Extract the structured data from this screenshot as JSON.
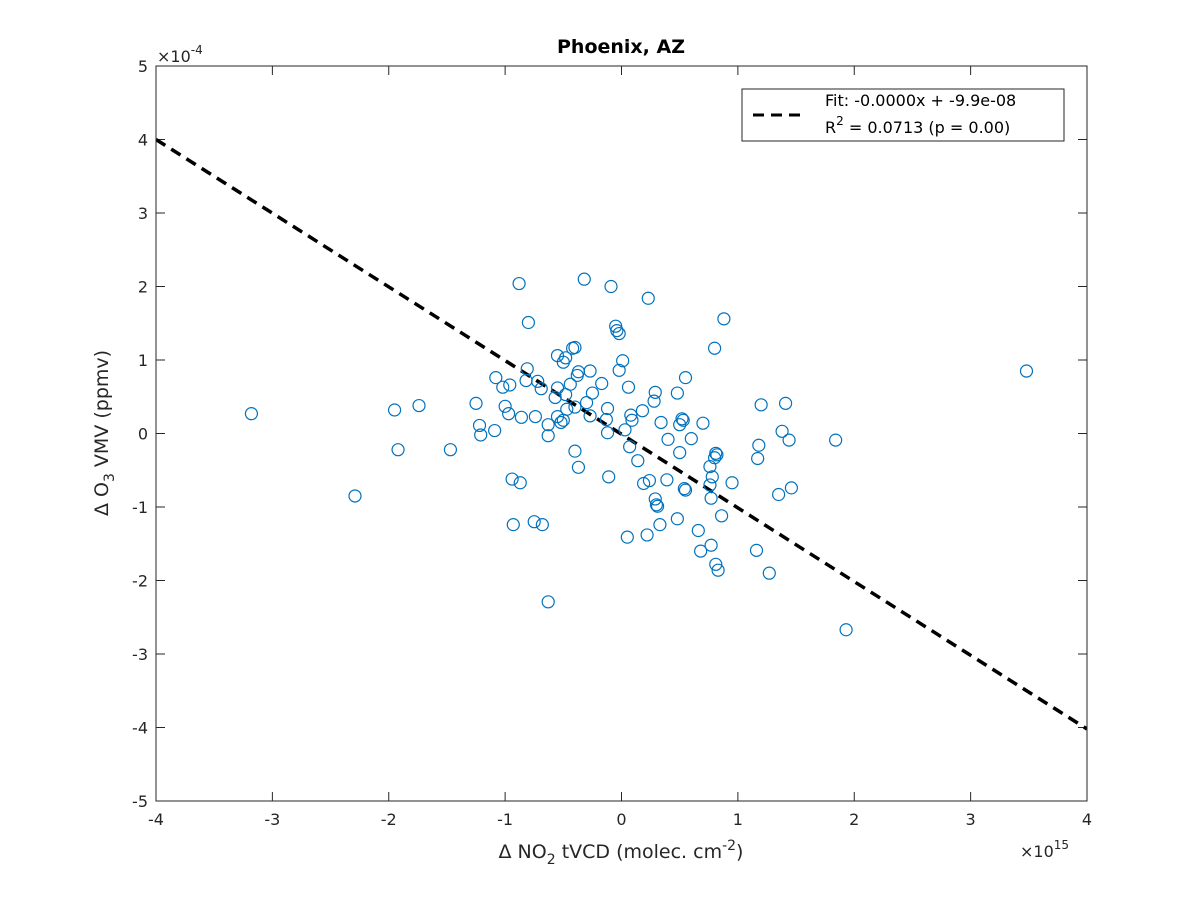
{
  "chart_data": {
    "type": "scatter",
    "title": "Phoenix, AZ",
    "xlabel": {
      "prefix": "Δ NO",
      "sub": "2",
      "mid": " tVCD (molec. cm",
      "sup": "-2",
      "suffix": ")"
    },
    "ylabel": {
      "prefix": "Δ O",
      "sub": "3",
      "suffix": " VMV (ppmv)"
    },
    "x_exponent": {
      "base": "×10",
      "exp": "15"
    },
    "y_exponent": {
      "base": "×10",
      "exp": "-4"
    },
    "xlim": [
      -4,
      4
    ],
    "ylim": [
      -5,
      5
    ],
    "xticks": [
      -4,
      -3,
      -2,
      -1,
      0,
      1,
      2,
      3,
      4
    ],
    "yticks": [
      -5,
      -4,
      -3,
      -2,
      -1,
      0,
      1,
      2,
      3,
      4,
      5
    ],
    "grid": false,
    "legend_position": "top-right",
    "colors": {
      "points": "#0072BD",
      "fit": "#000000",
      "axis": "#262626"
    },
    "fit": {
      "legend_label": "Fit: -0.0000x + -9.9e-08",
      "r2_prefix": "R",
      "r2_sup": "2",
      "r2_suffix": " = 0.0713 (p = 0.00)",
      "x": [
        -4,
        4
      ],
      "y": [
        4.0,
        -4.02
      ]
    },
    "points": [
      [
        -3.18,
        0.27
      ],
      [
        -2.29,
        -0.85
      ],
      [
        -1.95,
        0.32
      ],
      [
        -1.92,
        -0.22
      ],
      [
        -1.74,
        0.38
      ],
      [
        -1.47,
        -0.22
      ],
      [
        -1.25,
        0.41
      ],
      [
        -1.22,
        0.11
      ],
      [
        -1.21,
        -0.02
      ],
      [
        -1.09,
        0.04
      ],
      [
        -1.08,
        0.76
      ],
      [
        -1.02,
        0.63
      ],
      [
        -1.0,
        0.37
      ],
      [
        -0.97,
        0.27
      ],
      [
        -0.96,
        0.66
      ],
      [
        -0.94,
        -0.62
      ],
      [
        -0.93,
        -1.24
      ],
      [
        -0.88,
        2.04
      ],
      [
        -0.87,
        -0.67
      ],
      [
        -0.86,
        0.22
      ],
      [
        -0.82,
        0.72
      ],
      [
        -0.81,
        0.88
      ],
      [
        -0.8,
        1.51
      ],
      [
        -0.75,
        -1.2
      ],
      [
        -0.74,
        0.23
      ],
      [
        -0.72,
        0.71
      ],
      [
        -0.69,
        0.61
      ],
      [
        -0.68,
        -1.24
      ],
      [
        -0.63,
        -2.29
      ],
      [
        -0.63,
        0.12
      ],
      [
        -0.63,
        -0.03
      ],
      [
        -0.57,
        0.49
      ],
      [
        -0.55,
        1.06
      ],
      [
        -0.55,
        0.62
      ],
      [
        -0.55,
        0.23
      ],
      [
        -0.52,
        0.15
      ],
      [
        -0.5,
        0.97
      ],
      [
        -0.5,
        0.18
      ],
      [
        -0.48,
        0.53
      ],
      [
        -0.48,
        1.03
      ],
      [
        -0.47,
        0.33
      ],
      [
        -0.44,
        0.67
      ],
      [
        -0.42,
        1.16
      ],
      [
        -0.4,
        1.17
      ],
      [
        -0.4,
        0.36
      ],
      [
        -0.4,
        -0.24
      ],
      [
        -0.38,
        0.79
      ],
      [
        -0.37,
        0.84
      ],
      [
        -0.37,
        -0.46
      ],
      [
        -0.32,
        2.1
      ],
      [
        -0.3,
        0.42
      ],
      [
        -0.27,
        0.85
      ],
      [
        -0.27,
        0.24
      ],
      [
        -0.25,
        0.55
      ],
      [
        -0.17,
        0.68
      ],
      [
        -0.13,
        0.19
      ],
      [
        -0.12,
        0.34
      ],
      [
        -0.12,
        0.01
      ],
      [
        -0.11,
        -0.59
      ],
      [
        -0.09,
        2.0
      ],
      [
        -0.05,
        1.46
      ],
      [
        -0.04,
        1.4
      ],
      [
        -0.02,
        1.36
      ],
      [
        -0.02,
        0.86
      ],
      [
        0.01,
        0.99
      ],
      [
        0.03,
        0.05
      ],
      [
        0.05,
        -1.41
      ],
      [
        0.06,
        0.63
      ],
      [
        0.07,
        -0.18
      ],
      [
        0.08,
        0.25
      ],
      [
        0.09,
        0.18
      ],
      [
        0.14,
        -0.37
      ],
      [
        0.18,
        0.31
      ],
      [
        0.19,
        -0.68
      ],
      [
        0.22,
        -1.38
      ],
      [
        0.23,
        1.84
      ],
      [
        0.24,
        -0.64
      ],
      [
        0.28,
        0.44
      ],
      [
        0.29,
        0.56
      ],
      [
        0.29,
        -0.89
      ],
      [
        0.3,
        -0.97
      ],
      [
        0.31,
        -0.99
      ],
      [
        0.33,
        -1.24
      ],
      [
        0.34,
        0.15
      ],
      [
        0.39,
        -0.63
      ],
      [
        0.4,
        -0.08
      ],
      [
        0.48,
        -1.16
      ],
      [
        0.48,
        0.55
      ],
      [
        0.5,
        0.12
      ],
      [
        0.5,
        -0.26
      ],
      [
        0.52,
        0.2
      ],
      [
        0.53,
        0.18
      ],
      [
        0.54,
        -0.75
      ],
      [
        0.55,
        0.76
      ],
      [
        0.55,
        -0.77
      ],
      [
        0.6,
        -0.07
      ],
      [
        0.66,
        -1.32
      ],
      [
        0.68,
        -1.6
      ],
      [
        0.7,
        0.14
      ],
      [
        0.76,
        -0.45
      ],
      [
        0.76,
        -0.7
      ],
      [
        0.77,
        -1.52
      ],
      [
        0.77,
        -0.88
      ],
      [
        0.78,
        -0.59
      ],
      [
        0.8,
        1.16
      ],
      [
        0.8,
        -0.33
      ],
      [
        0.81,
        -0.27
      ],
      [
        0.81,
        -1.78
      ],
      [
        0.82,
        -0.29
      ],
      [
        0.83,
        -1.86
      ],
      [
        0.86,
        -1.12
      ],
      [
        0.88,
        1.56
      ],
      [
        0.95,
        -0.67
      ],
      [
        1.16,
        -1.59
      ],
      [
        1.17,
        -0.34
      ],
      [
        1.18,
        -0.16
      ],
      [
        1.2,
        0.39
      ],
      [
        1.27,
        -1.9
      ],
      [
        1.35,
        -0.83
      ],
      [
        1.38,
        0.03
      ],
      [
        1.41,
        0.41
      ],
      [
        1.44,
        -0.09
      ],
      [
        1.46,
        -0.74
      ],
      [
        1.84,
        -0.09
      ],
      [
        1.93,
        -2.67
      ],
      [
        3.48,
        0.85
      ]
    ]
  }
}
